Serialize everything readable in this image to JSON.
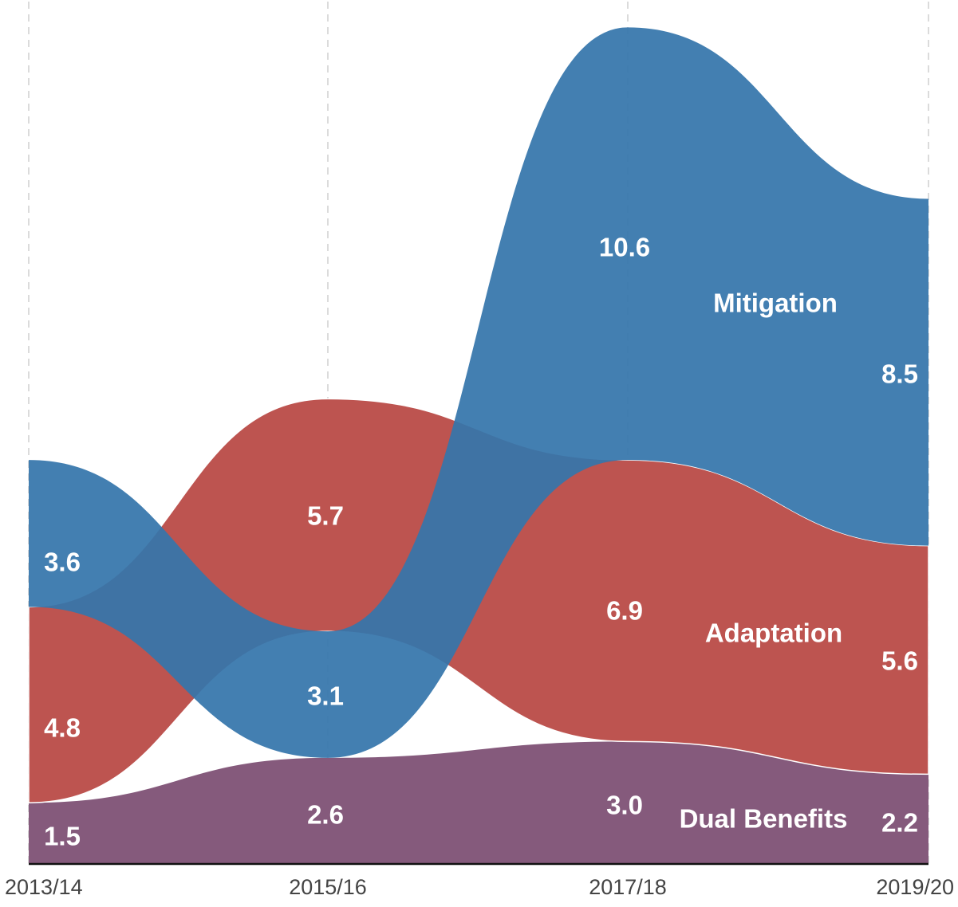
{
  "chart_data": {
    "type": "area",
    "categories": [
      "2013/14",
      "2015/16",
      "2017/18",
      "2019/20"
    ],
    "series": [
      {
        "name": "Dual Benefits",
        "values": [
          1.5,
          2.6,
          3.0,
          2.2
        ],
        "color": "#855a7c"
      },
      {
        "name": "Adaptation",
        "values": [
          4.8,
          5.7,
          6.9,
          5.6
        ],
        "color": "#bd5450"
      },
      {
        "name": "Mitigation",
        "values": [
          3.6,
          3.1,
          10.6,
          8.5
        ],
        "color": "#3575ab"
      }
    ],
    "value_labels": [
      [
        "1.5",
        "2.6",
        "3.0",
        "2.2"
      ],
      [
        "4.8",
        "5.7",
        "6.9",
        "5.6"
      ],
      [
        "3.6",
        "3.1",
        "10.6",
        "8.5"
      ]
    ],
    "stack_order_note_color_overlap": "#3c6a98",
    "grid": true
  }
}
